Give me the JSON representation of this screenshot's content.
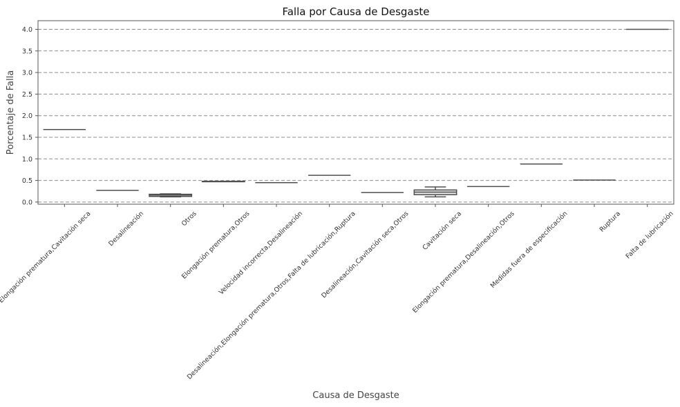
{
  "chart_data": {
    "type": "box",
    "title": "Falla por Causa de Desgaste",
    "xlabel": "Causa de Desgaste",
    "ylabel": "Porcentaje de Falla",
    "ylim": [
      -0.05,
      4.2
    ],
    "yticks": [
      "0.0",
      "0.5",
      "1.0",
      "1.5",
      "2.0",
      "2.5",
      "3.0",
      "3.5",
      "4.0"
    ],
    "grid": "horizontal-dashed",
    "color": "#e5e5e5",
    "categories": [
      "Elongación prematura,Cavitación seca",
      "Desalineación",
      "Otros",
      "Elongación prematura,Otros",
      "Velocidad incorrecta,Desalineación",
      "Desalineación,Elongación prematura,Otros,Falta de lubricación,Ruptura",
      "Desalineación,Cavitación seca,Otros",
      "Cavitación seca",
      "Elongación prematura,Desalineación,Otros",
      "Medidas fuera de especificación",
      "Ruptura",
      "Falta de lubricación"
    ],
    "boxes": [
      {
        "min": 1.68,
        "q1": 1.68,
        "median": 1.68,
        "q3": 1.68,
        "max": 1.68
      },
      {
        "min": 0.27,
        "q1": 0.27,
        "median": 0.27,
        "q3": 0.27,
        "max": 0.27
      },
      {
        "min": 0.12,
        "q1": 0.13,
        "median": 0.16,
        "q3": 0.18,
        "max": 0.19
      },
      {
        "min": 0.47,
        "q1": 0.47,
        "median": 0.48,
        "q3": 0.48,
        "max": 0.48
      },
      {
        "min": 0.45,
        "q1": 0.45,
        "median": 0.45,
        "q3": 0.45,
        "max": 0.45
      },
      {
        "min": 0.62,
        "q1": 0.62,
        "median": 0.62,
        "q3": 0.62,
        "max": 0.62
      },
      {
        "min": 0.22,
        "q1": 0.22,
        "median": 0.22,
        "q3": 0.22,
        "max": 0.22
      },
      {
        "min": 0.12,
        "q1": 0.17,
        "median": 0.23,
        "q3": 0.28,
        "max": 0.35
      },
      {
        "min": 0.36,
        "q1": 0.36,
        "median": 0.36,
        "q3": 0.36,
        "max": 0.36
      },
      {
        "min": 0.88,
        "q1": 0.88,
        "median": 0.88,
        "q3": 0.88,
        "max": 0.88
      },
      {
        "min": 0.51,
        "q1": 0.51,
        "median": 0.51,
        "q3": 0.51,
        "max": 0.51
      },
      {
        "min": 4.0,
        "q1": 4.0,
        "median": 4.0,
        "q3": 4.0,
        "max": 4.0
      }
    ]
  }
}
